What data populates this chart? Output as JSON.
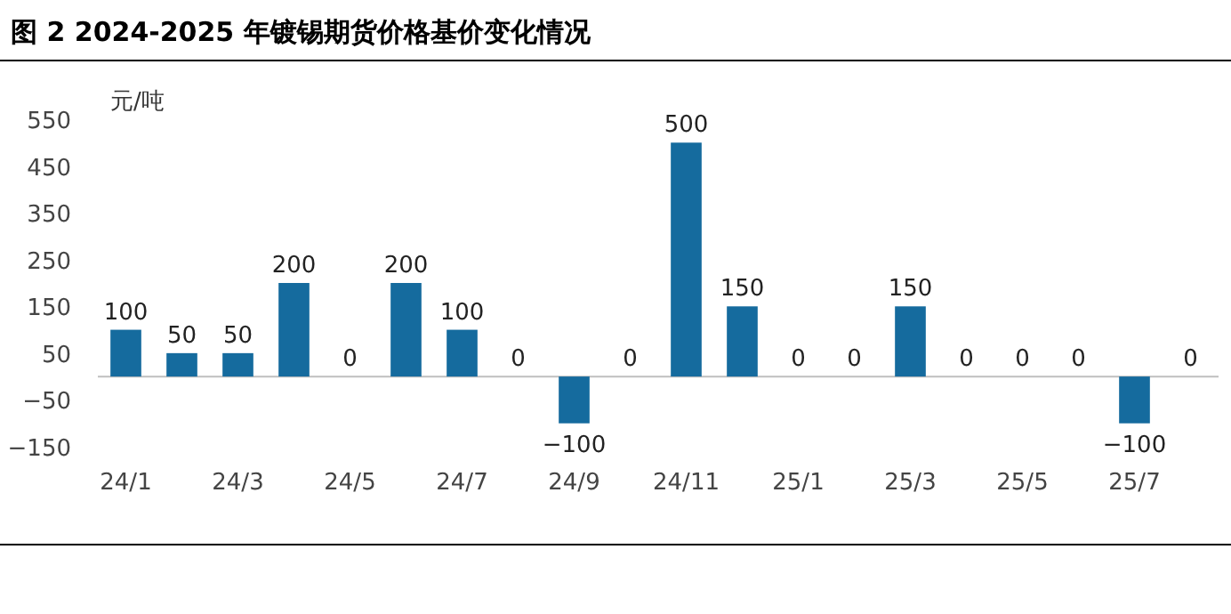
{
  "chart_data": {
    "type": "bar",
    "title": "图 2 2024-2025 年镀锡期货价格基价变化情况",
    "ylabel": "元/吨",
    "categories": [
      "24/1",
      null,
      "24/3",
      null,
      "24/5",
      null,
      "24/7",
      null,
      "24/9",
      null,
      "24/11",
      null,
      "25/1",
      null,
      "25/3",
      null,
      "25/5",
      null,
      "25/7",
      null
    ],
    "values": [
      100,
      50,
      50,
      200,
      0,
      200,
      100,
      0,
      -100,
      0,
      500,
      150,
      0,
      0,
      150,
      0,
      0,
      0,
      -100,
      0
    ],
    "color": "#156b9e",
    "ylim": [
      -150,
      550
    ],
    "yticks": [
      -150,
      -50,
      50,
      150,
      250,
      350,
      450,
      550
    ],
    "data_labels": true,
    "grid": false
  }
}
